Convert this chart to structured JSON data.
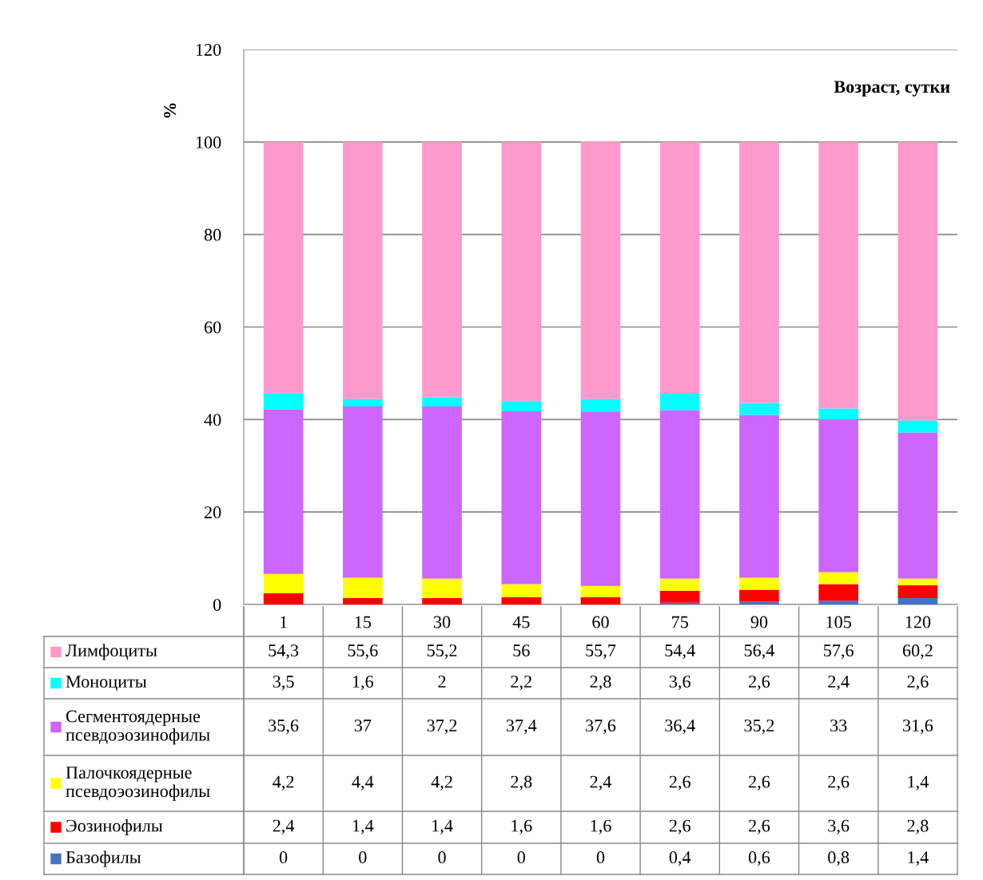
{
  "chart_data": {
    "type": "bar",
    "stacked": true,
    "xlabel": "Возраст, сутки",
    "ylabel": "%",
    "categories": [
      "1",
      "15",
      "30",
      "45",
      "60",
      "75",
      "90",
      "105",
      "120"
    ],
    "ylim": [
      0,
      120
    ],
    "yticks": [
      0,
      20,
      40,
      60,
      80,
      100,
      120
    ],
    "grid": "y",
    "legend": "bottom",
    "series": [
      {
        "name": "Базофилы",
        "color": "#4472c4",
        "values": [
          0,
          0,
          0,
          0,
          0,
          0.4,
          0.6,
          0.8,
          1.4
        ],
        "value_labels": [
          "0",
          "0",
          "0",
          "0",
          "0",
          "0,4",
          "0,6",
          "0,8",
          "1,4"
        ]
      },
      {
        "name": "Эозинофилы",
        "color": "#ff0000",
        "values": [
          2.4,
          1.4,
          1.4,
          1.6,
          1.6,
          2.6,
          2.6,
          3.6,
          2.8
        ],
        "value_labels": [
          "2,4",
          "1,4",
          "1,4",
          "1,6",
          "1,6",
          "2,6",
          "2,6",
          "3,6",
          "2,8"
        ]
      },
      {
        "name": "Палочкоядерные псевдоэозинофилы",
        "color": "#ffff00",
        "values": [
          4.2,
          4.4,
          4.2,
          2.8,
          2.4,
          2.6,
          2.6,
          2.6,
          1.4
        ],
        "value_labels": [
          "4,2",
          "4,4",
          "4,2",
          "2,8",
          "2,4",
          "2,6",
          "2,6",
          "2,6",
          "1,4"
        ]
      },
      {
        "name": "Сегментоядерные псевдоэозинофилы",
        "color": "#cc66ff",
        "values": [
          35.6,
          37,
          37.2,
          37.4,
          37.6,
          36.4,
          35.2,
          33,
          31.6
        ],
        "value_labels": [
          "35,6",
          "37",
          "37,2",
          "37,4",
          "37,6",
          "36,4",
          "35,2",
          "33",
          "31,6"
        ]
      },
      {
        "name": "Моноциты",
        "color": "#00ffff",
        "values": [
          3.5,
          1.6,
          2,
          2.2,
          2.8,
          3.6,
          2.6,
          2.4,
          2.6
        ],
        "value_labels": [
          "3,5",
          "1,6",
          "2",
          "2,2",
          "2,8",
          "3,6",
          "2,6",
          "2,4",
          "2,6"
        ]
      },
      {
        "name": "Лимфоциты",
        "color": "#ff99cc",
        "values": [
          54.3,
          55.6,
          55.2,
          56,
          55.7,
          54.4,
          56.4,
          57.6,
          60.2
        ],
        "value_labels": [
          "54,3",
          "55,6",
          "55,2",
          "56",
          "55,7",
          "54,4",
          "56,4",
          "57,6",
          "60,2"
        ]
      }
    ]
  }
}
